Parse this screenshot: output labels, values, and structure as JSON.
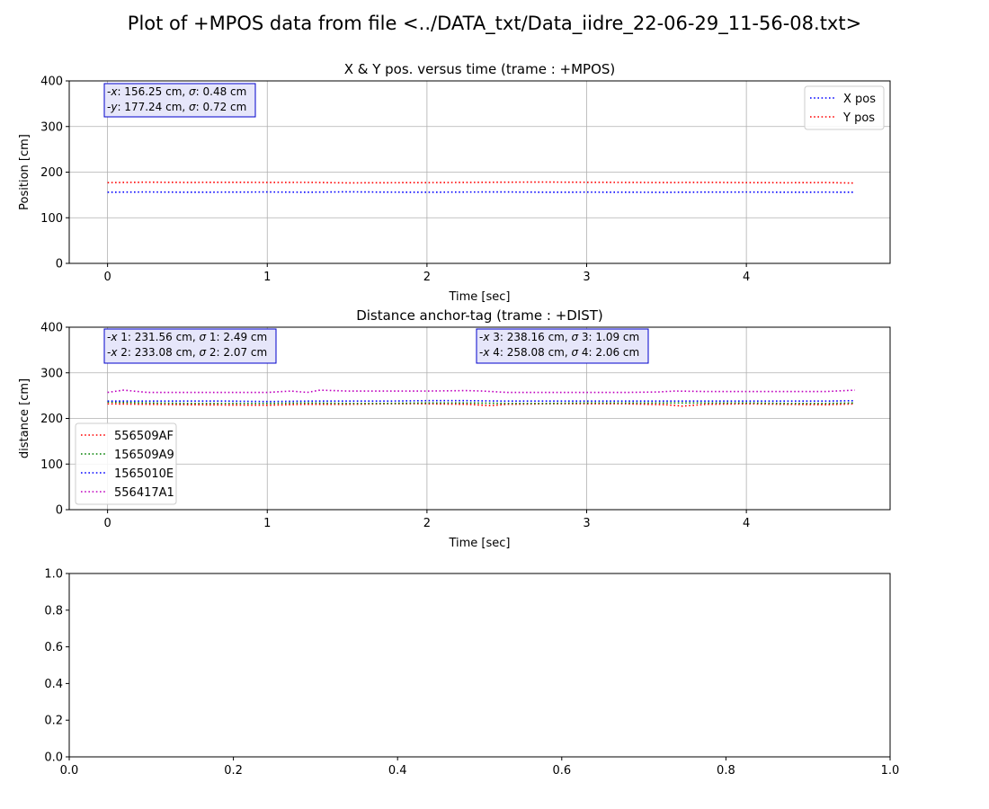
{
  "figure": {
    "title": "Plot of +MPOS data from file <../DATA_txt/Data_iidre_22-06-29_11-56-08.txt>"
  },
  "chart_data": [
    {
      "type": "line",
      "title": "X & Y pos. versus time (trame : +MPOS)",
      "xlabel": "Time [sec]",
      "ylabel": "Position [cm]",
      "xlim": [
        -0.24,
        4.9
      ],
      "ylim": [
        0,
        400
      ],
      "xticks": [
        0,
        1,
        2,
        3,
        4
      ],
      "yticks": [
        0,
        100,
        200,
        300,
        400
      ],
      "grid": true,
      "legend": "top-right",
      "line_style": "dotted",
      "series": [
        {
          "name": "X pos",
          "color": "#0000ff",
          "x": [
            0,
            0.25,
            0.5,
            0.75,
            1.0,
            1.25,
            1.5,
            1.75,
            2.0,
            2.25,
            2.5,
            2.75,
            3.0,
            3.25,
            3.5,
            3.75,
            4.0,
            4.25,
            4.5,
            4.68
          ],
          "y": [
            156,
            156.5,
            156,
            156.2,
            156.5,
            156,
            156.8,
            156.2,
            156,
            156.4,
            156.5,
            156,
            156.2,
            156,
            155.8,
            156.3,
            156.4,
            156,
            156.2,
            156
          ]
        },
        {
          "name": "Y pos",
          "color": "#ff0000",
          "x": [
            0,
            0.25,
            0.5,
            0.75,
            1.0,
            1.25,
            1.5,
            1.75,
            2.0,
            2.25,
            2.5,
            2.75,
            3.0,
            3.25,
            3.5,
            3.75,
            4.0,
            4.25,
            4.5,
            4.68
          ],
          "y": [
            177,
            178,
            177.5,
            177.8,
            177.5,
            177.6,
            176.5,
            176.8,
            177,
            177.5,
            178,
            178.2,
            177.8,
            177.5,
            177.2,
            177.6,
            177,
            176.8,
            177.2,
            176
          ]
        }
      ],
      "stats_box": {
        "lines": [
          [
            "-",
            "x",
            ": 156.25 cm, ",
            "σ",
            ": 0.48 cm"
          ],
          [
            "-",
            "y",
            ": 177.24 cm, ",
            "σ",
            ": 0.72 cm"
          ]
        ]
      }
    },
    {
      "type": "line",
      "title": "Distance anchor-tag (trame : +DIST)",
      "xlabel": "Time [sec]",
      "ylabel": "distance [cm]",
      "xlim": [
        -0.24,
        4.9
      ],
      "ylim": [
        0,
        400
      ],
      "xticks": [
        0,
        1,
        2,
        3,
        4
      ],
      "yticks": [
        0,
        100,
        200,
        300,
        400
      ],
      "grid": true,
      "legend": "lower-left",
      "line_style": "dotted",
      "series": [
        {
          "name": "556509AF",
          "color": "#ff0000",
          "x": [
            0,
            0.25,
            0.5,
            0.75,
            1.0,
            1.25,
            1.5,
            1.75,
            2.0,
            2.25,
            2.4,
            2.5,
            2.75,
            3.0,
            3.25,
            3.5,
            3.6,
            3.75,
            4.0,
            4.25,
            4.5,
            4.68
          ],
          "y": [
            232,
            231,
            230,
            229.5,
            229,
            231,
            231,
            232,
            232,
            231,
            228,
            231,
            232,
            232,
            232,
            230,
            227,
            231,
            232,
            231,
            230,
            232
          ]
        },
        {
          "name": "156509A9",
          "color": "#008000",
          "x": [
            0,
            0.25,
            0.5,
            0.75,
            1.0,
            1.25,
            1.5,
            1.75,
            2.0,
            2.25,
            2.5,
            2.75,
            3.0,
            3.25,
            3.5,
            3.75,
            4.0,
            4.25,
            4.5,
            4.68
          ],
          "y": [
            236,
            234,
            233,
            233,
            233,
            234,
            233,
            233,
            234,
            234,
            233,
            233,
            234,
            234,
            234,
            234,
            234,
            233,
            233,
            234
          ]
        },
        {
          "name": "1565010E",
          "color": "#0000ff",
          "x": [
            0,
            0.25,
            0.5,
            0.75,
            1.0,
            1.25,
            1.5,
            1.75,
            2.0,
            2.25,
            2.5,
            2.75,
            3.0,
            3.25,
            3.5,
            3.75,
            4.0,
            4.25,
            4.5,
            4.68
          ],
          "y": [
            238,
            238,
            238,
            238,
            237,
            238,
            238,
            238,
            239,
            239,
            238,
            238,
            238,
            238,
            238,
            238,
            238,
            238,
            238,
            239
          ]
        },
        {
          "name": "556417A1",
          "color": "#bf00bf",
          "x": [
            0,
            0.1,
            0.25,
            0.5,
            0.75,
            1.0,
            1.15,
            1.25,
            1.33,
            1.5,
            1.75,
            2.0,
            2.25,
            2.35,
            2.5,
            2.75,
            3.0,
            3.25,
            3.45,
            3.55,
            3.75,
            4.0,
            4.25,
            4.5,
            4.68
          ],
          "y": [
            257,
            262,
            257,
            257,
            257,
            257,
            260,
            257,
            262,
            260,
            260,
            260,
            261,
            260,
            257,
            257,
            257,
            257,
            258,
            260,
            259,
            259,
            259,
            259,
            262
          ]
        }
      ],
      "stats_boxes": [
        {
          "lines": [
            [
              "-",
              "x",
              " 1: 231.56 cm, ",
              "σ",
              " 1: 2.49 cm"
            ],
            [
              "-",
              "x",
              " 2: 233.08 cm, ",
              "σ",
              " 2: 2.07 cm"
            ]
          ]
        },
        {
          "lines": [
            [
              "-",
              "x",
              " 3: 238.16 cm, ",
              "σ",
              " 3: 1.09 cm"
            ],
            [
              "-",
              "x",
              " 4: 258.08 cm, ",
              "σ",
              " 4: 2.06 cm"
            ]
          ]
        }
      ]
    },
    {
      "type": "line",
      "title": "",
      "xlabel": "",
      "ylabel": "",
      "xlim": [
        0,
        1
      ],
      "ylim": [
        0,
        1
      ],
      "xticks": [
        0,
        0.2,
        0.4,
        0.6,
        0.8,
        1
      ],
      "xtick_labels": [
        "0.0",
        "0.2",
        "0.4",
        "0.6",
        "0.8",
        "1.0"
      ],
      "yticks": [
        0,
        0.2,
        0.4,
        0.6,
        0.8,
        1
      ],
      "ytick_labels": [
        "0.0",
        "0.2",
        "0.4",
        "0.6",
        "0.8",
        "1.0"
      ],
      "grid": false,
      "series": []
    }
  ]
}
